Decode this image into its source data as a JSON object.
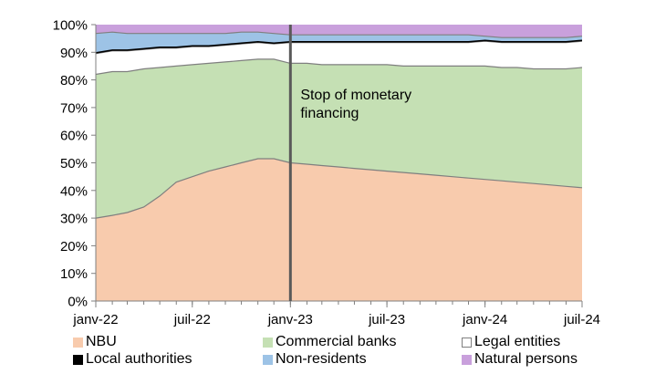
{
  "chart_data": {
    "type": "area",
    "stacked": true,
    "percent": true,
    "x": [
      "2022-01-01",
      "2022-02-01",
      "2022-03-01",
      "2022-04-01",
      "2022-05-01",
      "2022-06-01",
      "2022-07-01",
      "2022-08-01",
      "2022-09-01",
      "2022-10-01",
      "2022-11-01",
      "2022-12-01",
      "2023-01-01",
      "2023-02-01",
      "2023-03-01",
      "2023-04-01",
      "2023-05-01",
      "2023-06-01",
      "2023-07-01",
      "2023-08-01",
      "2023-09-01",
      "2023-10-01",
      "2023-11-01",
      "2023-12-01",
      "2024-01-01",
      "2024-02-01",
      "2024-03-01",
      "2024-04-01",
      "2024-05-01",
      "2024-06-01",
      "2024-07-01"
    ],
    "x_tick_labels": [
      "janv-22",
      "juil-22",
      "janv-23",
      "juil-23",
      "janv-24",
      "juil-24"
    ],
    "x_tick_dates": [
      "2022-01-01",
      "2022-07-01",
      "2023-01-01",
      "2023-07-01",
      "2024-01-01",
      "2024-07-01"
    ],
    "y_tick_labels": [
      "0%",
      "10%",
      "20%",
      "30%",
      "40%",
      "50%",
      "60%",
      "70%",
      "80%",
      "90%",
      "100%"
    ],
    "ylim": [
      0,
      100
    ],
    "grid": false,
    "legend_position": "bottom",
    "series": [
      {
        "name": "NBU",
        "color": "#f8cbad",
        "line": "#7f7f7f",
        "values": [
          30,
          31,
          32,
          34,
          38,
          43,
          45,
          47,
          48.5,
          50,
          51.5,
          51.5,
          50,
          49.5,
          49,
          48.5,
          48,
          47.5,
          47,
          46.5,
          46,
          45.5,
          45,
          44.5,
          44,
          43.5,
          43,
          42.5,
          42,
          41.5,
          41
        ]
      },
      {
        "name": "Commercial banks",
        "color": "#c5e0b4",
        "line": "#7f7f7f",
        "values": [
          52,
          52,
          51,
          50,
          46.5,
          42,
          40.5,
          39,
          38,
          37,
          36,
          36,
          36,
          36.5,
          36.5,
          37,
          37.5,
          38,
          38.5,
          38.5,
          39,
          39.5,
          40,
          40.5,
          41,
          41,
          41.5,
          41.5,
          42,
          42.5,
          43.5
        ]
      },
      {
        "name": "Legal entities",
        "color": "#ffffff",
        "line": "#7f7f7f",
        "values": [
          7.5,
          7.5,
          7.5,
          7,
          7,
          6.5,
          6.5,
          6,
          6,
          6,
          6,
          5.5,
          7.5,
          7.5,
          8,
          8,
          8,
          8,
          8,
          8.5,
          8.5,
          8.5,
          8.5,
          8.5,
          9,
          9,
          9,
          9.5,
          9.5,
          9.5,
          9.5
        ]
      },
      {
        "name": "Local authorities",
        "color": "#000000",
        "line": "#000000",
        "values": [
          0.3,
          0.3,
          0.3,
          0.3,
          0.3,
          0.3,
          0.3,
          0.3,
          0.3,
          0.3,
          0.3,
          0.3,
          0.3,
          0.3,
          0.3,
          0.3,
          0.3,
          0.3,
          0.3,
          0.3,
          0.3,
          0.3,
          0.3,
          0.3,
          0.3,
          0.3,
          0.3,
          0.3,
          0.3,
          0.3,
          0.3
        ]
      },
      {
        "name": "Non-residents",
        "color": "#9dc3e6",
        "line": "#7f7f7f",
        "values": [
          7,
          6.5,
          6,
          5.5,
          5,
          5,
          4.5,
          4.5,
          4,
          4,
          3.5,
          3.5,
          2.5,
          2.5,
          2.5,
          2.5,
          2.5,
          2.5,
          2.5,
          2.5,
          2.5,
          2.5,
          2.5,
          2.5,
          1.5,
          1.5,
          1.5,
          1.5,
          1.5,
          1.5,
          1.5
        ]
      },
      {
        "name": "Natural persons",
        "color": "#c9a0dc",
        "line": "#7f7f7f",
        "values": [
          3.2,
          2.7,
          3.2,
          3.2,
          3.2,
          3.2,
          3.2,
          3.2,
          3.2,
          2.7,
          2.7,
          3.2,
          3.7,
          3.7,
          3.7,
          3.7,
          3.7,
          3.7,
          3.7,
          3.7,
          3.7,
          3.7,
          3.7,
          3.7,
          4.2,
          4.7,
          4.7,
          4.7,
          4.7,
          4.7,
          4.2
        ]
      }
    ],
    "annotations": [
      {
        "type": "vertical-line",
        "x": "2023-01-01",
        "color": "#595959"
      },
      {
        "type": "text",
        "text": "Stop of monetary financing",
        "lines": [
          "Stop of monetary",
          "financing"
        ],
        "x": "2023-01-01",
        "y": 73
      }
    ]
  }
}
